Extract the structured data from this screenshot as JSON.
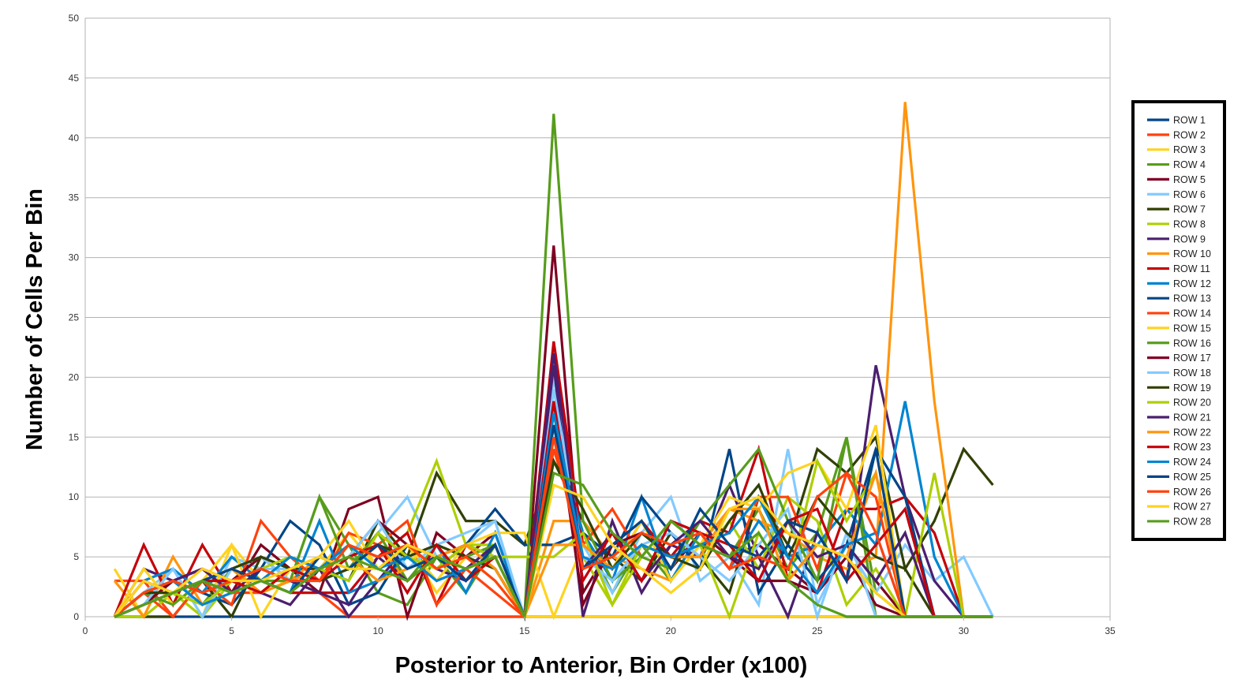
{
  "chart_data": {
    "type": "line",
    "title": "",
    "xlabel": "Posterior to Anterior, Bin Order (x100)",
    "ylabel": "Number of Cells Per Bin",
    "xlim": [
      0,
      35
    ],
    "ylim": [
      0,
      50
    ],
    "xticks": [
      0,
      5,
      10,
      15,
      20,
      25,
      30,
      35
    ],
    "yticks": [
      0,
      5,
      10,
      15,
      20,
      25,
      30,
      35,
      40,
      45,
      50
    ],
    "grid": "horizontal",
    "legend_position": "right",
    "x": [
      1,
      2,
      3,
      4,
      5,
      6,
      7,
      8,
      9,
      10,
      11,
      12,
      13,
      14,
      15,
      16,
      17,
      18,
      19,
      20,
      21,
      22,
      23,
      24,
      25,
      26,
      27,
      28,
      29,
      30,
      31
    ],
    "series": [
      {
        "name": "ROW 1",
        "color": "#004586",
        "values": [
          0,
          0,
          0,
          0,
          0,
          0,
          0,
          0,
          0,
          0,
          0,
          0,
          0,
          0,
          0,
          0,
          0,
          0,
          0,
          0,
          0,
          0,
          0,
          0,
          0,
          0,
          0,
          0,
          0,
          0,
          0
        ]
      },
      {
        "name": "ROW 2",
        "color": "#ff420e",
        "values": [
          3,
          3,
          0,
          3,
          2,
          2,
          3,
          2,
          0,
          0,
          0,
          0,
          0,
          0,
          0,
          0,
          0,
          0,
          0,
          0,
          0,
          0,
          0,
          0,
          0,
          0,
          0,
          0,
          0,
          0,
          0
        ]
      },
      {
        "name": "ROW 3",
        "color": "#ffd320",
        "values": [
          4,
          0,
          2,
          0,
          6,
          3,
          5,
          4,
          7,
          4,
          6,
          2,
          5,
          3,
          0,
          0,
          0,
          0,
          0,
          0,
          0,
          0,
          0,
          0,
          0,
          0,
          0,
          0,
          0,
          0,
          0
        ]
      },
      {
        "name": "ROW 4",
        "color": "#579d1c",
        "values": [
          0,
          2,
          2,
          1,
          4,
          2,
          3,
          10,
          6,
          2,
          1,
          5,
          2,
          6,
          0,
          16,
          7,
          2,
          6,
          3,
          7,
          5,
          9,
          4,
          7,
          15,
          2,
          0,
          0,
          0,
          0
        ]
      },
      {
        "name": "ROW 5",
        "color": "#7e0021",
        "values": [
          0,
          1,
          3,
          4,
          2,
          6,
          4,
          2,
          9,
          10,
          0,
          7,
          5,
          7,
          0,
          31,
          2,
          6,
          8,
          4,
          7,
          5,
          6,
          4,
          2,
          6,
          3,
          0,
          0,
          0,
          0
        ]
      },
      {
        "name": "ROW 6",
        "color": "#83caff",
        "values": [
          0,
          2,
          4,
          0,
          5,
          4,
          4,
          3,
          4,
          7,
          10,
          5,
          6,
          8,
          0,
          20,
          6,
          2,
          7,
          10,
          3,
          5,
          1,
          14,
          1,
          6,
          2,
          6,
          3,
          5,
          0
        ]
      },
      {
        "name": "ROW 7",
        "color": "#314004",
        "values": [
          0,
          0,
          0,
          3,
          0,
          5,
          4,
          4,
          3,
          8,
          5,
          12,
          8,
          8,
          6,
          13,
          8,
          5,
          3,
          7,
          5,
          2,
          10,
          6,
          14,
          12,
          15,
          4,
          8,
          14,
          11
        ]
      },
      {
        "name": "ROW 8",
        "color": "#aecf00",
        "values": [
          0,
          0,
          2,
          0,
          3,
          2,
          4,
          3,
          6,
          5,
          7,
          13,
          6,
          6,
          0,
          17,
          5,
          1,
          6,
          5,
          5,
          8,
          4,
          10,
          8,
          1,
          4,
          0,
          0,
          0,
          0
        ]
      },
      {
        "name": "ROW 9",
        "color": "#4b1f6f",
        "values": [
          0,
          4,
          3,
          2,
          3,
          2,
          1,
          4,
          0,
          3,
          6,
          4,
          3,
          6,
          0,
          21,
          0,
          8,
          2,
          6,
          5,
          11,
          5,
          0,
          7,
          3,
          21,
          10,
          3,
          0,
          0
        ]
      },
      {
        "name": "ROW 10",
        "color": "#ff950e",
        "values": [
          3,
          0,
          5,
          1,
          3,
          2,
          3,
          5,
          4,
          6,
          3,
          5,
          4,
          5,
          0,
          8,
          8,
          5,
          4,
          3,
          6,
          9,
          8,
          7,
          5,
          4,
          5,
          43,
          18,
          0,
          0
        ]
      },
      {
        "name": "ROW 11",
        "color": "#c5000b",
        "values": [
          0,
          6,
          1,
          6,
          2,
          3,
          2,
          2,
          2,
          5,
          7,
          1,
          6,
          4,
          0,
          23,
          6,
          4,
          8,
          5,
          8,
          7,
          14,
          3,
          2,
          9,
          9,
          10,
          7,
          0,
          0
        ]
      },
      {
        "name": "ROW 12",
        "color": "#0084d1",
        "values": [
          0,
          3,
          4,
          2,
          5,
          3,
          2,
          8,
          2,
          3,
          5,
          6,
          2,
          7,
          0,
          15,
          7,
          3,
          10,
          3,
          7,
          4,
          8,
          5,
          6,
          9,
          6,
          18,
          5,
          0,
          0
        ]
      },
      {
        "name": "ROW 13",
        "color": "#004586",
        "values": [
          0,
          1,
          3,
          2,
          1,
          4,
          8,
          6,
          1,
          2,
          6,
          4,
          6,
          9,
          6,
          6,
          7,
          5,
          10,
          7,
          4,
          14,
          2,
          6,
          3,
          6,
          14,
          10,
          0,
          0,
          0
        ]
      },
      {
        "name": "ROW 14",
        "color": "#ff420e",
        "values": [
          0,
          2,
          0,
          3,
          1,
          8,
          5,
          3,
          7,
          6,
          8,
          1,
          4,
          2,
          0,
          14,
          6,
          9,
          5,
          8,
          7,
          4,
          10,
          10,
          4,
          12,
          10,
          0,
          0,
          0,
          0
        ]
      },
      {
        "name": "ROW 15",
        "color": "#ffd320",
        "values": [
          0,
          4,
          1,
          3,
          6,
          0,
          4,
          5,
          8,
          4,
          6,
          3,
          6,
          7,
          7,
          0,
          6,
          4,
          8,
          3,
          6,
          10,
          9,
          12,
          13,
          9,
          16,
          0,
          0,
          0,
          0
        ]
      },
      {
        "name": "ROW 16",
        "color": "#579d1c",
        "values": [
          0,
          2,
          1,
          3,
          2,
          3,
          3,
          10,
          4,
          7,
          3,
          6,
          5,
          6,
          0,
          42,
          8,
          3,
          5,
          4,
          8,
          11,
          14,
          8,
          3,
          15,
          0,
          0,
          0,
          0,
          0
        ]
      },
      {
        "name": "ROW 17",
        "color": "#7e0021",
        "values": [
          0,
          1,
          3,
          4,
          3,
          5,
          3,
          4,
          5,
          8,
          6,
          5,
          6,
          5,
          0,
          18,
          1,
          6,
          7,
          5,
          6,
          5,
          3,
          3,
          2,
          5,
          1,
          0,
          0,
          0,
          0
        ]
      },
      {
        "name": "ROW 18",
        "color": "#83caff",
        "values": [
          0,
          1,
          4,
          0,
          4,
          5,
          3,
          3,
          5,
          8,
          4,
          6,
          7,
          8,
          0,
          19,
          5,
          3,
          6,
          7,
          5,
          3,
          6,
          9,
          0,
          7,
          0,
          0,
          0,
          0,
          0
        ]
      },
      {
        "name": "ROW 19",
        "color": "#314004",
        "values": [
          0,
          2,
          2,
          3,
          4,
          5,
          4,
          3,
          4,
          6,
          5,
          6,
          5,
          4,
          0,
          13,
          9,
          4,
          7,
          5,
          4,
          8,
          11,
          5,
          10,
          7,
          5,
          4,
          0,
          0,
          0
        ]
      },
      {
        "name": "ROW 20",
        "color": "#aecf00",
        "values": [
          0,
          1,
          2,
          1,
          3,
          4,
          5,
          4,
          3,
          7,
          5,
          4,
          6,
          5,
          5,
          5,
          7,
          1,
          5,
          8,
          6,
          0,
          7,
          3,
          13,
          8,
          12,
          0,
          12,
          0,
          0
        ]
      },
      {
        "name": "ROW 21",
        "color": "#4b1f6f",
        "values": [
          0,
          2,
          3,
          4,
          2,
          4,
          3,
          2,
          1,
          5,
          3,
          5,
          4,
          6,
          0,
          22,
          4,
          7,
          3,
          6,
          8,
          5,
          4,
          8,
          5,
          6,
          3,
          7,
          0,
          0,
          0
        ]
      },
      {
        "name": "ROW 22",
        "color": "#ff950e",
        "values": [
          0,
          1,
          2,
          3,
          4,
          2,
          3,
          4,
          5,
          3,
          4,
          5,
          6,
          4,
          0,
          6,
          6,
          4,
          6,
          5,
          5,
          9,
          9,
          3,
          6,
          5,
          12,
          0,
          0,
          0,
          0
        ]
      },
      {
        "name": "ROW 23",
        "color": "#c5000b",
        "values": [
          0,
          3,
          2,
          3,
          3,
          2,
          4,
          3,
          5,
          6,
          2,
          6,
          3,
          5,
          0,
          18,
          3,
          7,
          3,
          8,
          7,
          6,
          3,
          8,
          9,
          3,
          6,
          9,
          0,
          0,
          0
        ]
      },
      {
        "name": "ROW 24",
        "color": "#0084d1",
        "values": [
          0,
          2,
          3,
          1,
          2,
          3,
          5,
          4,
          6,
          4,
          5,
          3,
          4,
          5,
          0,
          17,
          5,
          4,
          6,
          5,
          6,
          7,
          10,
          5,
          2,
          6,
          7,
          0,
          0,
          0,
          0
        ]
      },
      {
        "name": "ROW 25",
        "color": "#004586",
        "values": [
          0,
          1,
          2,
          3,
          4,
          3,
          2,
          5,
          4,
          6,
          4,
          5,
          3,
          6,
          0,
          16,
          4,
          6,
          8,
          4,
          9,
          6,
          5,
          8,
          7,
          3,
          14,
          0,
          0,
          0,
          0
        ]
      },
      {
        "name": "ROW 26",
        "color": "#ff420e",
        "values": [
          0,
          2,
          3,
          2,
          3,
          4,
          3,
          3,
          6,
          5,
          6,
          4,
          5,
          3,
          0,
          15,
          4,
          5,
          7,
          6,
          7,
          4,
          5,
          4,
          10,
          12,
          7,
          0,
          0,
          0,
          0
        ]
      },
      {
        "name": "ROW 27",
        "color": "#ffd320",
        "values": [
          0,
          3,
          2,
          4,
          3,
          3,
          4,
          5,
          4,
          4,
          6,
          5,
          4,
          5,
          0,
          11,
          10,
          6,
          4,
          2,
          4,
          9,
          10,
          7,
          6,
          5,
          2,
          0,
          0,
          0,
          0
        ]
      },
      {
        "name": "ROW 28",
        "color": "#579d1c",
        "values": [
          0,
          1,
          2,
          3,
          2,
          3,
          2,
          4,
          5,
          4,
          3,
          5,
          4,
          5,
          0,
          12,
          11,
          7,
          5,
          8,
          6,
          5,
          7,
          3,
          1,
          0,
          0,
          0,
          0,
          0,
          0
        ]
      }
    ]
  }
}
